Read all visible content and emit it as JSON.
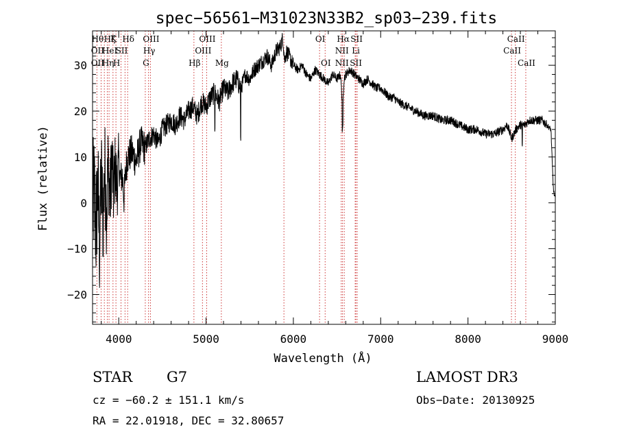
{
  "chart_data": {
    "type": "line",
    "title": "spec−56561−M31023N33B2_sp03−239.fits",
    "xlabel": "Wavelength (Å)",
    "ylabel": "Flux (relative)",
    "xlim": [
      3700,
      9000
    ],
    "ylim": [
      -26.5,
      37.5
    ],
    "x_ticks": [
      {
        "value": 4000,
        "label": "4000"
      },
      {
        "value": 5000,
        "label": "5000"
      },
      {
        "value": 6000,
        "label": "6000"
      },
      {
        "value": 7000,
        "label": "7000"
      },
      {
        "value": 8000,
        "label": "8000"
      },
      {
        "value": 9000,
        "label": "9000"
      }
    ],
    "y_ticks": [
      {
        "value": -20,
        "label": "−20"
      },
      {
        "value": -10,
        "label": "−10"
      },
      {
        "value": 0,
        "label": "0"
      },
      {
        "value": 10,
        "label": "10"
      },
      {
        "value": 20,
        "label": "20"
      },
      {
        "value": 30,
        "label": "30"
      }
    ],
    "series": [
      {
        "name": "flux",
        "x": [
          3700,
          3720,
          3740,
          3760,
          3780,
          3800,
          3820,
          3840,
          3860,
          3880,
          3900,
          3920,
          3940,
          3960,
          3980,
          4000,
          4020,
          4040,
          4060,
          4080,
          4100,
          4150,
          4200,
          4250,
          4300,
          4350,
          4400,
          4450,
          4500,
          4550,
          4600,
          4650,
          4700,
          4750,
          4800,
          4850,
          4900,
          4950,
          5000,
          5050,
          5100,
          5150,
          5200,
          5250,
          5300,
          5350,
          5400,
          5450,
          5500,
          5550,
          5600,
          5650,
          5700,
          5750,
          5800,
          5850,
          5880,
          5900,
          5920,
          5950,
          6000,
          6050,
          6100,
          6150,
          6200,
          6250,
          6300,
          6350,
          6400,
          6450,
          6500,
          6540,
          6563,
          6580,
          6600,
          6650,
          6700,
          6750,
          6800,
          6850,
          6900,
          6950,
          7000,
          7050,
          7100,
          7150,
          7200,
          7300,
          7400,
          7500,
          7600,
          7700,
          7800,
          7900,
          8000,
          8100,
          8200,
          8300,
          8400,
          8450,
          8500,
          8550,
          8600,
          8650,
          8700,
          8750,
          8800,
          8850,
          8900,
          8950,
          8975,
          8985,
          9000
        ],
        "y": [
          -1,
          2,
          -6,
          4,
          -10,
          6,
          -4,
          8,
          -2,
          9,
          0,
          10,
          2,
          8,
          3,
          9,
          5,
          6,
          1,
          7,
          10,
          11,
          9,
          13,
          12,
          14,
          15,
          13,
          16,
          17,
          18,
          17,
          19,
          18,
          20,
          21,
          19,
          22,
          21,
          23,
          24,
          22,
          25,
          24,
          26,
          27,
          25,
          28,
          27,
          29,
          30,
          31,
          32,
          30,
          33,
          34,
          36,
          31,
          33,
          32,
          30,
          29,
          30,
          28,
          27,
          29,
          28,
          27,
          26,
          28,
          27,
          28,
          21,
          27,
          28,
          29,
          28,
          27,
          26,
          27,
          26,
          25,
          25,
          24,
          23,
          23,
          22,
          21,
          20,
          19,
          19,
          18,
          18,
          17,
          16,
          16,
          15,
          15,
          16,
          17,
          14,
          16,
          17,
          17,
          18,
          18,
          18,
          18,
          17,
          16,
          4,
          2,
          1
        ]
      }
    ],
    "lines": [
      {
        "wave": 3750,
        "labels": [
          "Hθ",
          "OII",
          "OII"
        ]
      },
      {
        "wave": 3798,
        "labels": [
          "",
          "",
          ""
        ]
      },
      {
        "wave": 3835,
        "labels": [
          "",
          "",
          ""
        ]
      },
      {
        "wave": 3869,
        "labels": [
          "",
          "",
          "Hη"
        ]
      },
      {
        "wave": 3889,
        "labels": [
          "Hζ",
          "HeI",
          ""
        ]
      },
      {
        "wave": 3934,
        "labels": [
          "K",
          "",
          ""
        ]
      },
      {
        "wave": 3968,
        "labels": [
          "",
          "",
          "H"
        ]
      },
      {
        "wave": 4026,
        "labels": [
          "",
          "SII",
          ""
        ]
      },
      {
        "wave": 4072,
        "labels": [
          "",
          "",
          ""
        ]
      },
      {
        "wave": 4102,
        "labels": [
          "Hδ",
          "",
          ""
        ]
      },
      {
        "wave": 4304,
        "labels": [
          "",
          "",
          "G"
        ]
      },
      {
        "wave": 4341,
        "labels": [
          "",
          "Hγ",
          ""
        ]
      },
      {
        "wave": 4363,
        "labels": [
          "OIII",
          "",
          ""
        ]
      },
      {
        "wave": 4861,
        "labels": [
          "",
          "",
          "Hβ"
        ]
      },
      {
        "wave": 4959,
        "labels": [
          "",
          "OIII",
          ""
        ]
      },
      {
        "wave": 5007,
        "labels": [
          "OIII",
          "",
          ""
        ]
      },
      {
        "wave": 5175,
        "labels": [
          "",
          "",
          "Mg"
        ]
      },
      {
        "wave": 5892,
        "labels": [
          "",
          "",
          ""
        ]
      },
      {
        "wave": 6300,
        "labels": [
          "OI",
          "",
          ""
        ]
      },
      {
        "wave": 6364,
        "labels": [
          "",
          "",
          "OI"
        ]
      },
      {
        "wave": 6548,
        "labels": [
          "",
          "NII",
          "NII"
        ]
      },
      {
        "wave": 6563,
        "labels": [
          "Hα",
          "",
          ""
        ]
      },
      {
        "wave": 6583,
        "labels": [
          "",
          "",
          ""
        ]
      },
      {
        "wave": 6708,
        "labels": [
          "",
          "Li",
          "SII"
        ]
      },
      {
        "wave": 6716,
        "labels": [
          "SII",
          "",
          ""
        ]
      },
      {
        "wave": 6731,
        "labels": [
          "",
          "",
          ""
        ]
      },
      {
        "wave": 8498,
        "labels": [
          "",
          "CaII",
          ""
        ]
      },
      {
        "wave": 8542,
        "labels": [
          "CaII",
          "",
          ""
        ]
      },
      {
        "wave": 8662,
        "labels": [
          "",
          "",
          "CaII"
        ]
      }
    ],
    "line_color": "#cc3333",
    "spectrum_color": "#000000"
  },
  "info": {
    "class": "STAR",
    "subclass": "G7",
    "survey": "LAMOST DR3",
    "cz": "cz = −60.2 ± 151.1 km/s",
    "obsdate": "Obs−Date: 20130925",
    "radec": "RA =  22.01918, DEC =  32.80657"
  }
}
